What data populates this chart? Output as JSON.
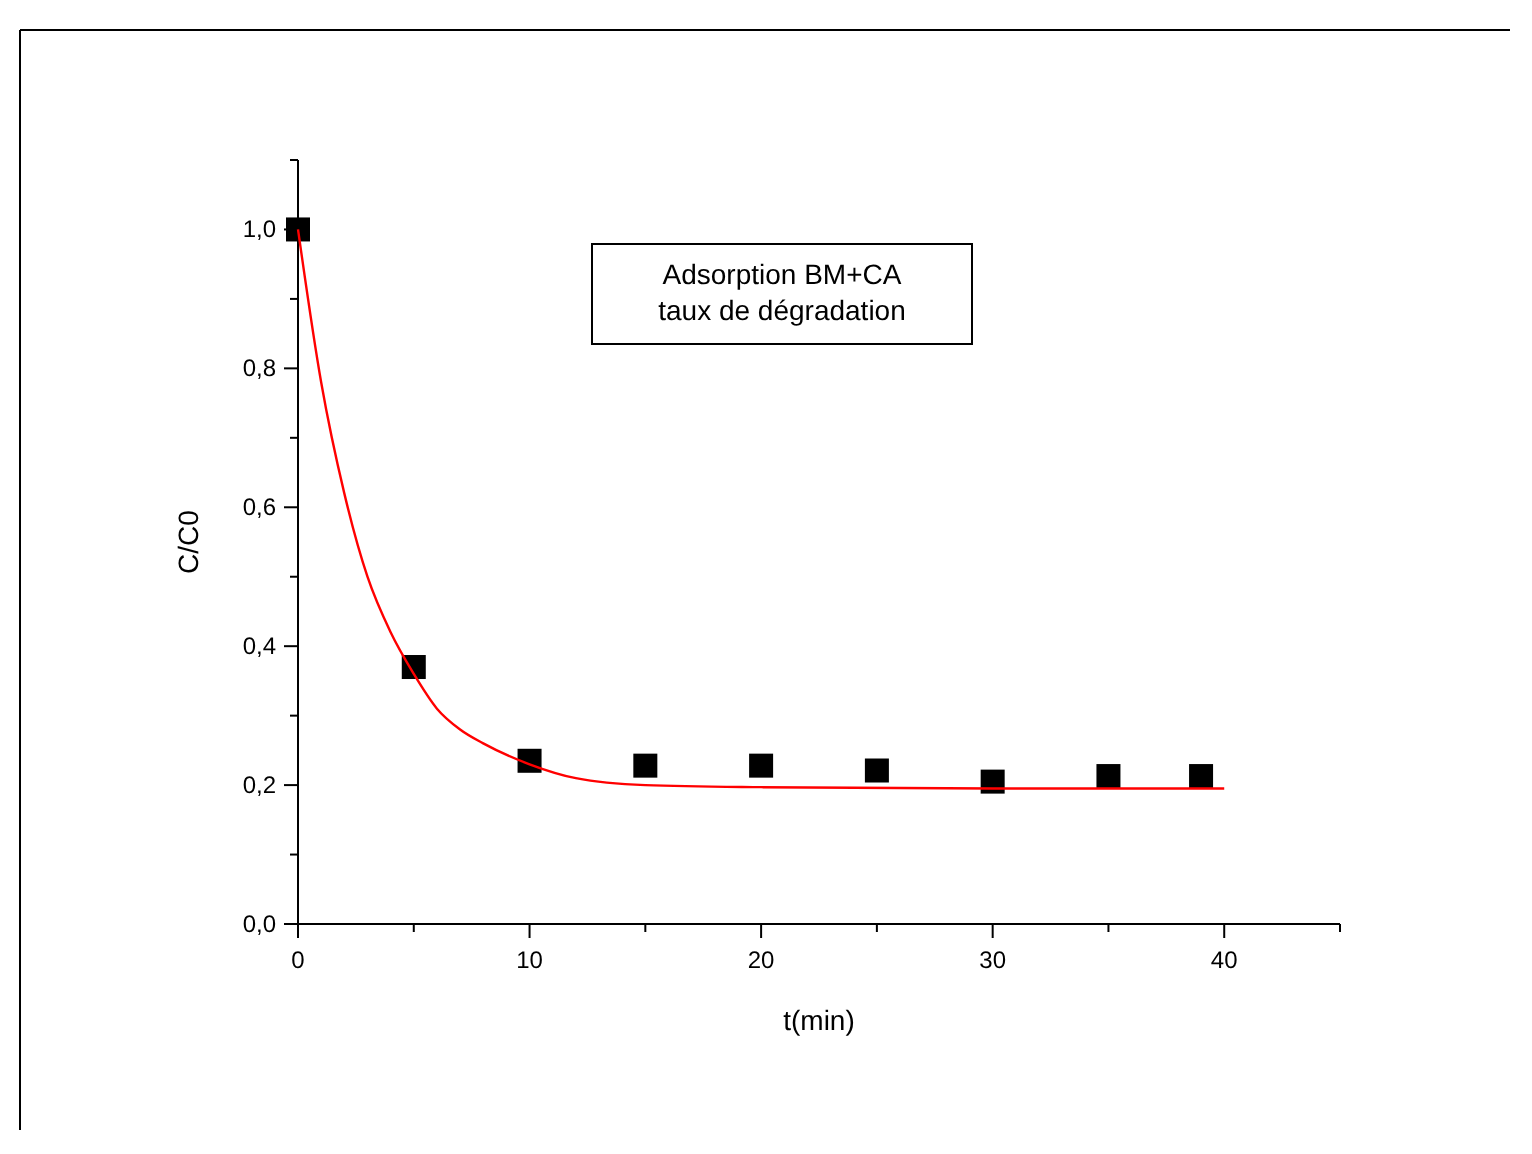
{
  "chart_data": {
    "type": "scatter",
    "xlabel": "t(min)",
    "ylabel": "C/C0",
    "annotations": [
      "Adsorption BM+CA",
      "taux de dégradation"
    ],
    "xlim": [
      0,
      45
    ],
    "ylim": [
      0,
      1.1
    ],
    "xticks": [
      0,
      {
        "value": 5,
        "label": null
      },
      10,
      {
        "value": 15,
        "label": null
      },
      20,
      {
        "value": 25,
        "label": null
      },
      30,
      {
        "value": 35,
        "label": null
      },
      40,
      {
        "value": 45,
        "label": null
      }
    ],
    "yticks": [
      {
        "value": 0,
        "label": "0,0"
      },
      {
        "value": 0.1,
        "label": null
      },
      {
        "value": 0.2,
        "label": "0,2"
      },
      {
        "value": 0.3,
        "label": null
      },
      {
        "value": 0.4,
        "label": "0,4"
      },
      {
        "value": 0.5,
        "label": null
      },
      {
        "value": 0.6,
        "label": "0,6"
      },
      {
        "value": 0.7,
        "label": null
      },
      {
        "value": 0.8,
        "label": "0,8"
      },
      {
        "value": 0.9,
        "label": null
      },
      {
        "value": 1.0,
        "label": "1,0"
      },
      {
        "value": 1.1,
        "label": null
      }
    ],
    "grid": false,
    "series": [
      {
        "marker": "square",
        "color": "#000000",
        "x": [
          0,
          5,
          10,
          15,
          20,
          25,
          30,
          35,
          39
        ],
        "values": [
          1.0,
          0.37,
          0.235,
          0.228,
          0.228,
          0.221,
          0.205,
          0.213,
          0.213
        ]
      },
      {
        "type": "line",
        "marker": "none",
        "line_style": "solid",
        "color": "#ff0000",
        "x": [
          0,
          1,
          2,
          3,
          4,
          5,
          6,
          7,
          8,
          10,
          12,
          15,
          20,
          30,
          40
        ],
        "values": [
          1.0,
          0.78,
          0.62,
          0.5,
          0.42,
          0.36,
          0.31,
          0.28,
          0.26,
          0.23,
          0.21,
          0.2,
          0.197,
          0.195,
          0.195
        ]
      }
    ]
  }
}
